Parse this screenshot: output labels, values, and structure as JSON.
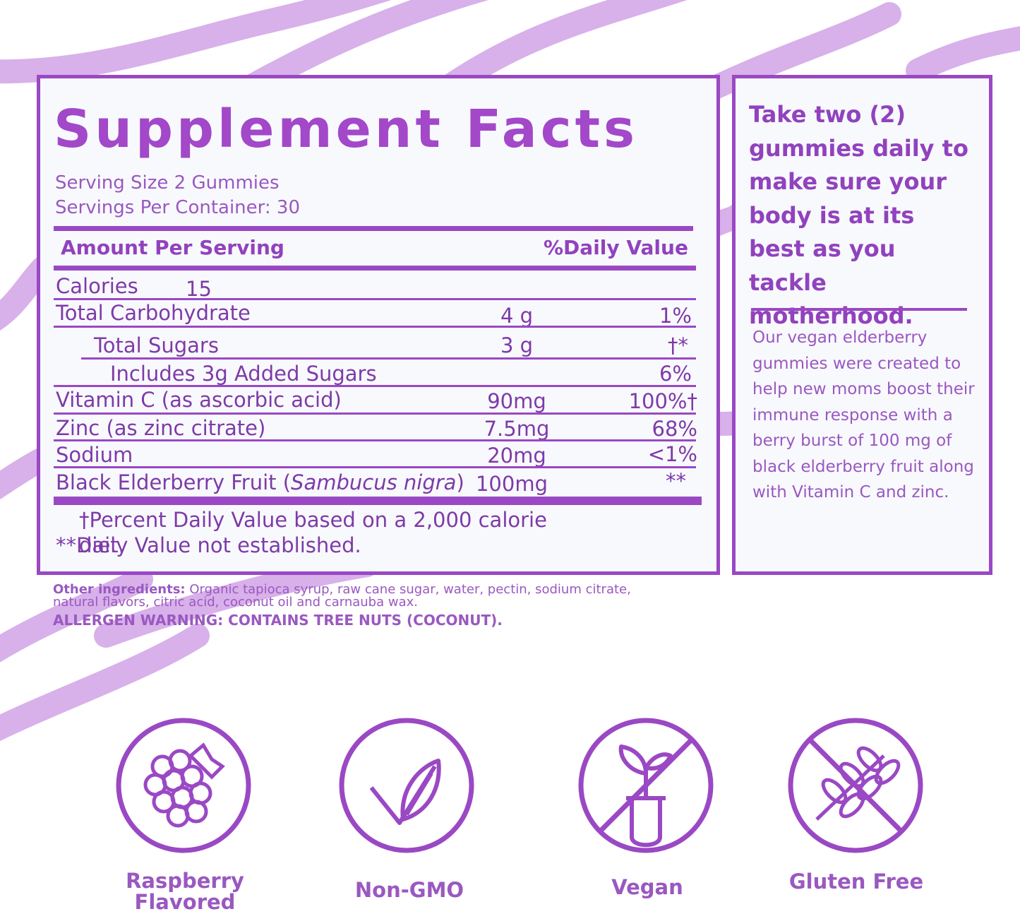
{
  "facts": {
    "title": "Supplement Facts",
    "serving_size": "Serving Size 2 Gummies",
    "servings_per_container": "Servings Per Container: 30",
    "header": [
      "Amount Per Serving",
      "%Daily Value"
    ],
    "rows": [
      {
        "name": "Calories",
        "amount": "15"
      },
      {
        "name": "Total Carbohydrate",
        "amount": "4 g",
        "daily_value": "1%"
      },
      {
        "name": "Total Sugars",
        "amount": "3 g",
        "daily_value": "†*"
      },
      {
        "name": "Includes 3g Added Sugars",
        "daily_value": "6%"
      },
      {
        "name": "Vitamin C (as ascorbic acid)",
        "amount": "90mg",
        "daily_value": "100%†"
      },
      {
        "name": "Zinc (as zinc citrate)",
        "amount": "7.5mg",
        "daily_value": "68%"
      },
      {
        "name": "Sodium",
        "amount": "20mg",
        "daily_value": "<1%"
      },
      {
        "name_parts": [
          "Black Elderberry Fruit (",
          "Sambucus nigra",
          ")"
        ],
        "amount": "100mg",
        "daily_value": "**"
      }
    ],
    "footnotes": [
      "†Percent Daily Value based on a 2,000 calorie diet.",
      "**Daily Value not established."
    ]
  },
  "side": {
    "heading": "Take two (2) gummies daily to make sure your body is at its best as you tackle motherhood.",
    "body": "Our vegan elderberry gummies were created to help new moms boost their immune response with a berry burst of 100 mg of black elderberry fruit along with Vitamin C and zinc."
  },
  "other_ingredients": {
    "label": "Other ingredients:",
    "text": "Organic tapioca syrup, raw cane sugar, water, pectin, sodium citrate, natural flavors, citric acid, coconut oil and carnauba wax."
  },
  "allergen_warning": "ALLERGEN WARNING: CONTAINS TREE NUTS (COCONUT).",
  "badges": [
    "Raspberry Flavored",
    "Non-GMO",
    "Vegan",
    "Gluten Free"
  ]
}
